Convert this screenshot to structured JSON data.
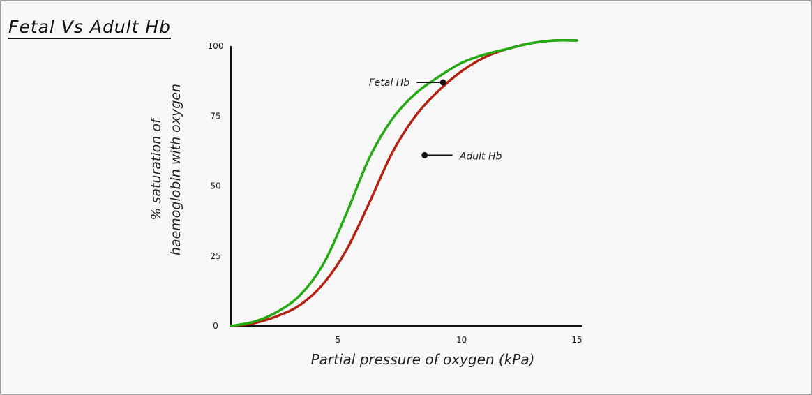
{
  "chart_data": {
    "type": "line",
    "title": "Fetal Vs Adult Hb",
    "xlabel": "Partial pressure of oxygen (kPa)",
    "ylabel_line1": "% saturation of",
    "ylabel_line2": "haemoglobin with oxygen",
    "xlim": [
      0,
      15
    ],
    "ylim": [
      0,
      100
    ],
    "xticks": [
      {
        "value": 5,
        "label": "5"
      },
      {
        "value": 10,
        "label": "10"
      },
      {
        "value": 15,
        "label": "15"
      }
    ],
    "yticks": [
      {
        "value": 0,
        "label": "0"
      },
      {
        "value": 25,
        "label": "25"
      },
      {
        "value": 50,
        "label": "50"
      },
      {
        "value": 75,
        "label": "75"
      },
      {
        "value": 100,
        "label": "100"
      }
    ],
    "grid": false,
    "series": [
      {
        "name": "Fetal Hb",
        "color": "#22aa11",
        "x": [
          0,
          1,
          2,
          3,
          4,
          5,
          6,
          7,
          8,
          9,
          10,
          11,
          12,
          13,
          14,
          15
        ],
        "y": [
          0,
          1.5,
          5,
          11,
          22,
          40,
          60,
          74,
          83,
          89,
          94,
          97,
          99,
          101,
          102,
          102
        ]
      },
      {
        "name": "Adult Hb",
        "color": "#b52010",
        "x": [
          0,
          1,
          2,
          3,
          4,
          5,
          6,
          7,
          8,
          9,
          10,
          11,
          12,
          13,
          14,
          15
        ],
        "y": [
          0,
          1,
          3.5,
          7.5,
          15,
          27,
          44,
          62,
          75,
          84,
          91,
          96,
          99,
          101,
          102,
          102
        ]
      }
    ],
    "annotations": [
      {
        "series": "Fetal Hb",
        "label": "Fetal Hb",
        "x": 9.2,
        "y": 87,
        "side": "left"
      },
      {
        "series": "Adult Hb",
        "label": "Adult Hb",
        "x": 8.4,
        "y": 62,
        "side": "right"
      }
    ]
  }
}
